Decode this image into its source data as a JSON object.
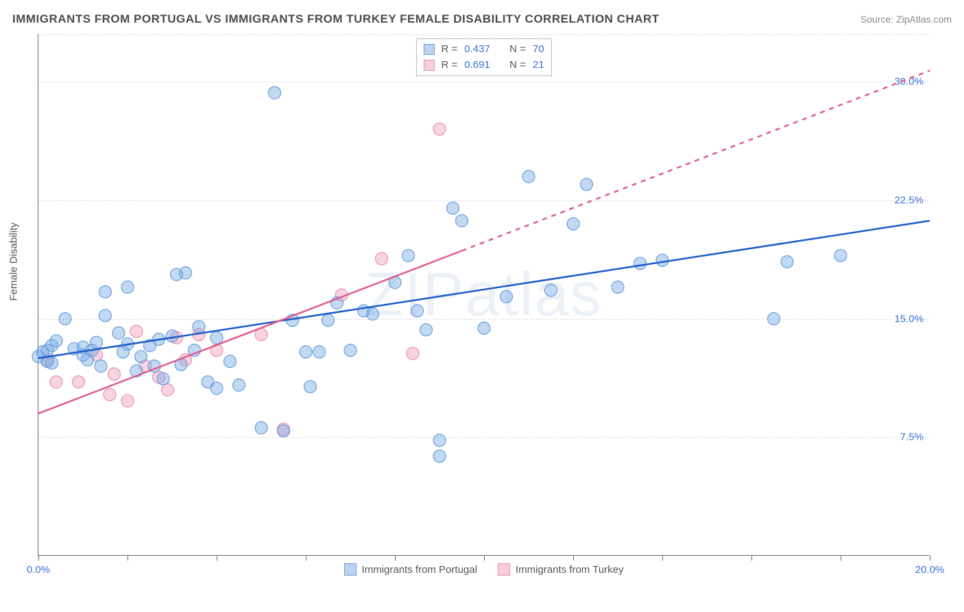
{
  "title": "IMMIGRANTS FROM PORTUGAL VS IMMIGRANTS FROM TURKEY FEMALE DISABILITY CORRELATION CHART",
  "source_prefix": "Source: ",
  "source_name": "ZipAtlas.com",
  "y_axis_title": "Female Disability",
  "watermark": "ZIPatlas",
  "chart": {
    "type": "scatter",
    "background_color": "#ffffff",
    "grid_color": "#dddddd",
    "axis_color": "#666666",
    "xlim": [
      0,
      20
    ],
    "ylim": [
      0,
      33
    ],
    "y_gridlines": [
      {
        "value": 7.5,
        "label": "7.5%"
      },
      {
        "value": 15.0,
        "label": "15.0%"
      },
      {
        "value": 22.5,
        "label": "22.5%"
      },
      {
        "value": 30.0,
        "label": "30.0%"
      }
    ],
    "y_gridline_top": 33,
    "x_ticks": [
      0,
      2,
      4,
      6,
      8,
      10,
      12,
      14,
      16,
      18,
      20
    ],
    "x_labels": [
      {
        "value": 0,
        "label": "0.0%"
      },
      {
        "value": 20,
        "label": "20.0%"
      }
    ],
    "marker_radius": 9,
    "marker_stroke_width": 1.2,
    "line_width": 2.5
  },
  "series": {
    "portugal": {
      "label": "Immigrants from Portugal",
      "fill_color": "rgba(120, 170, 230, 0.45)",
      "stroke_color": "#6a9ed8",
      "line_color": "#1a5ac8",
      "swatch_fill": "#bcd4ef",
      "swatch_border": "#6a9ed8",
      "R": "0.437",
      "N": "70",
      "trend": {
        "x1": 0,
        "y1": 12.5,
        "x2": 20,
        "y2": 21.2,
        "dashed": false
      },
      "points": [
        [
          0.0,
          12.6
        ],
        [
          0.1,
          12.9
        ],
        [
          0.2,
          12.3
        ],
        [
          0.2,
          13.0
        ],
        [
          0.3,
          12.2
        ],
        [
          0.3,
          13.3
        ],
        [
          0.4,
          13.6
        ],
        [
          0.6,
          15.0
        ],
        [
          0.8,
          13.1
        ],
        [
          1.0,
          12.7
        ],
        [
          1.0,
          13.2
        ],
        [
          1.1,
          12.4
        ],
        [
          1.2,
          13.0
        ],
        [
          1.3,
          13.5
        ],
        [
          1.4,
          12.0
        ],
        [
          1.5,
          16.7
        ],
        [
          1.5,
          15.2
        ],
        [
          1.8,
          14.1
        ],
        [
          1.9,
          12.9
        ],
        [
          2.0,
          13.4
        ],
        [
          2.0,
          17.0
        ],
        [
          2.2,
          11.7
        ],
        [
          2.3,
          12.6
        ],
        [
          2.5,
          13.3
        ],
        [
          2.6,
          12.0
        ],
        [
          2.7,
          13.7
        ],
        [
          2.8,
          11.2
        ],
        [
          3.0,
          13.9
        ],
        [
          3.1,
          17.8
        ],
        [
          3.2,
          12.1
        ],
        [
          3.3,
          17.9
        ],
        [
          3.5,
          13.0
        ],
        [
          3.6,
          14.5
        ],
        [
          3.8,
          11.0
        ],
        [
          4.0,
          13.8
        ],
        [
          4.0,
          10.6
        ],
        [
          4.3,
          12.3
        ],
        [
          4.5,
          10.8
        ],
        [
          5.0,
          8.1
        ],
        [
          5.3,
          29.3
        ],
        [
          5.5,
          7.9
        ],
        [
          5.7,
          14.9
        ],
        [
          6.0,
          12.9
        ],
        [
          6.1,
          10.7
        ],
        [
          6.3,
          12.9
        ],
        [
          6.5,
          14.9
        ],
        [
          6.7,
          16.0
        ],
        [
          7.0,
          13.0
        ],
        [
          7.3,
          15.5
        ],
        [
          7.5,
          15.3
        ],
        [
          8.0,
          17.3
        ],
        [
          8.3,
          19.0
        ],
        [
          8.5,
          15.5
        ],
        [
          8.7,
          14.3
        ],
        [
          9.0,
          7.3
        ],
        [
          9.0,
          6.3
        ],
        [
          9.3,
          22.0
        ],
        [
          9.5,
          21.2
        ],
        [
          10.0,
          14.4
        ],
        [
          10.5,
          16.4
        ],
        [
          11.0,
          24.0
        ],
        [
          11.5,
          16.8
        ],
        [
          12.0,
          21.0
        ],
        [
          12.3,
          23.5
        ],
        [
          13.0,
          17.0
        ],
        [
          13.5,
          18.5
        ],
        [
          14.0,
          18.7
        ],
        [
          16.5,
          15.0
        ],
        [
          16.8,
          18.6
        ],
        [
          18.0,
          19.0
        ]
      ]
    },
    "turkey": {
      "label": "Immigrants from Turkey",
      "fill_color": "rgba(240, 160, 185, 0.45)",
      "stroke_color": "#e78fb0",
      "line_color": "#e05a8a",
      "swatch_fill": "#f7cdd9",
      "swatch_border": "#e78fb0",
      "R": "0.691",
      "N": "21",
      "trend_solid": {
        "x1": 0,
        "y1": 9.0,
        "x2": 9.5,
        "y2": 19.3
      },
      "trend_dash": {
        "x1": 9.5,
        "y1": 19.3,
        "x2": 20,
        "y2": 30.7
      },
      "points": [
        [
          0.2,
          12.4
        ],
        [
          0.4,
          11.0
        ],
        [
          0.9,
          11.0
        ],
        [
          1.3,
          12.7
        ],
        [
          1.6,
          10.2
        ],
        [
          1.7,
          11.5
        ],
        [
          2.0,
          9.8
        ],
        [
          2.2,
          14.2
        ],
        [
          2.4,
          12.0
        ],
        [
          2.7,
          11.3
        ],
        [
          2.9,
          10.5
        ],
        [
          3.1,
          13.8
        ],
        [
          3.3,
          12.4
        ],
        [
          3.6,
          14.0
        ],
        [
          4.0,
          13.0
        ],
        [
          5.0,
          14.0
        ],
        [
          5.5,
          8.0
        ],
        [
          6.8,
          16.5
        ],
        [
          7.7,
          18.8
        ],
        [
          8.4,
          12.8
        ],
        [
          9.0,
          27.0
        ]
      ]
    }
  },
  "legend": {
    "r_label": "R =",
    "n_label": "N ="
  }
}
